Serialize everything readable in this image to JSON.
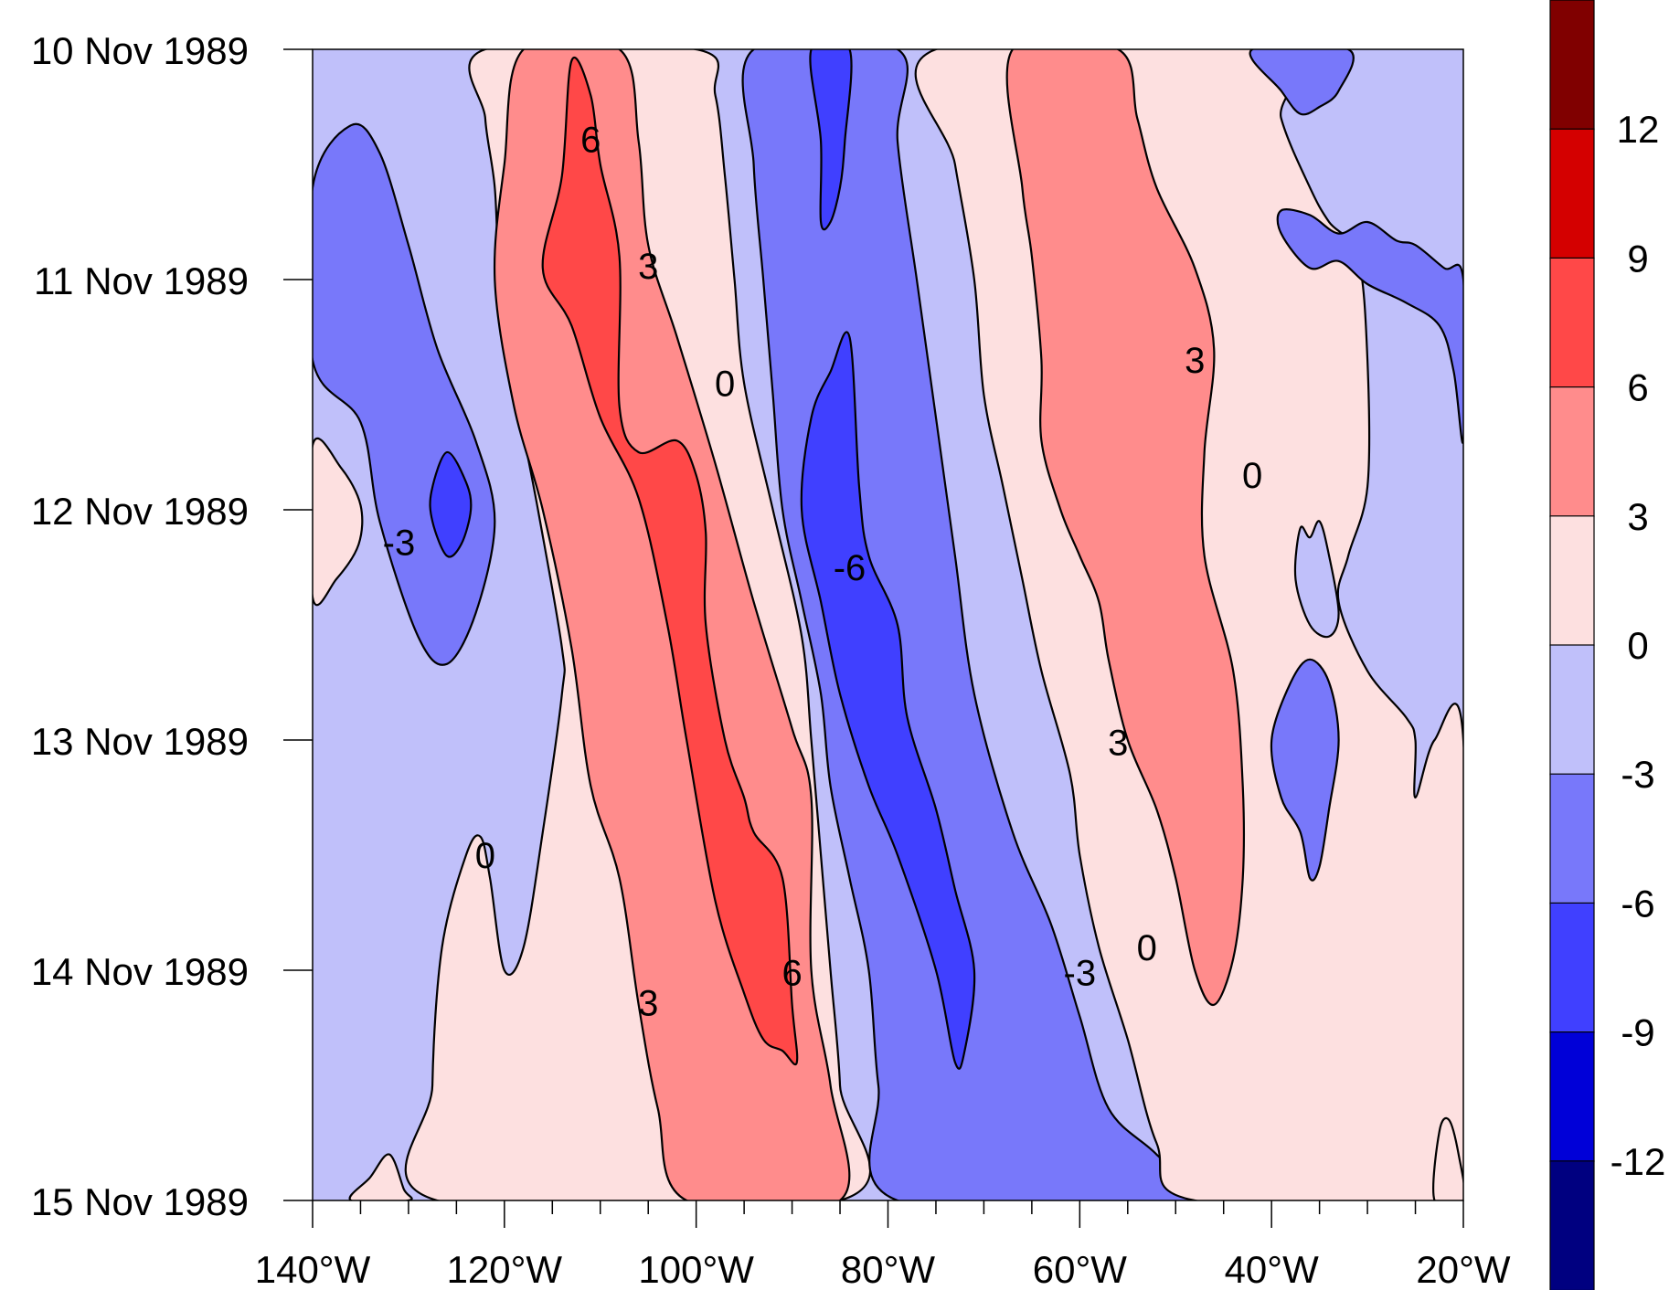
{
  "chart_data": {
    "type": "heatmap",
    "subtype": "filled-contour hovmoller",
    "title": "",
    "xlabel": "",
    "ylabel": "",
    "x_axis": {
      "range": [
        -140,
        -20
      ],
      "tick_values": [
        -140,
        -120,
        -100,
        -80,
        -60,
        -40,
        -20
      ],
      "tick_labels": [
        "140°W",
        "120°W",
        "100°W",
        "80°W",
        "60°W",
        "40°W",
        "20°W"
      ],
      "minor_tick_step": 5
    },
    "y_axis": {
      "range": [
        "10 Nov 1989",
        "15 Nov 1989"
      ],
      "direction": "time increases downward",
      "tick_labels": [
        "10 Nov 1989",
        "11 Nov 1989",
        "12 Nov 1989",
        "13 Nov 1989",
        "14 Nov 1989",
        "15 Nov 1989"
      ]
    },
    "contour_levels": [
      -12,
      -9,
      -6,
      -3,
      0,
      3,
      6,
      9,
      12
    ],
    "colorbar": {
      "placement": "right",
      "labels": [
        "12",
        "9",
        "6",
        "3",
        "0",
        "-3",
        "-6",
        "-9",
        "-12"
      ],
      "colors_top_to_bottom": [
        "#800000",
        "#d40000",
        "#ff4848",
        "#ff8c8c",
        "#fde0e0",
        "#c0c0fa",
        "#7878fa",
        "#4040ff",
        "#0000d8",
        "#000080"
      ]
    },
    "fill_colors": {
      "0_to_3": "#fde0e0",
      "3_to_6": "#ff8c8c",
      "6_to_9": "#ff4848",
      "m3_to_0": "#c0c0fa",
      "m6_to_m3": "#7878fa",
      "m9_to_m6": "#4040ff"
    },
    "contour_labels": [
      {
        "text": "6",
        "lon": -111,
        "day": 0.39
      },
      {
        "text": "3",
        "lon": -105,
        "day": 0.94
      },
      {
        "text": "0",
        "lon": -97,
        "day": 1.45
      },
      {
        "text": "-3",
        "lon": -131,
        "day": 2.14
      },
      {
        "text": "-6",
        "lon": -84,
        "day": 2.25
      },
      {
        "text": "3",
        "lon": -48,
        "day": 1.35
      },
      {
        "text": "0",
        "lon": -42,
        "day": 1.85
      },
      {
        "text": "3",
        "lon": -56,
        "day": 3.01
      },
      {
        "text": "0",
        "lon": -122,
        "day": 3.5
      },
      {
        "text": "3",
        "lon": -105,
        "day": 4.14
      },
      {
        "text": "6",
        "lon": -90,
        "day": 4.01
      },
      {
        "text": "-3",
        "lon": -60,
        "day": 4.01
      },
      {
        "text": "0",
        "lon": -53,
        "day": 3.9
      }
    ],
    "regions": [
      {
        "fill": "m6_to_m3",
        "points": [
          [
            -140,
            0.6
          ],
          [
            -136,
            0.33
          ],
          [
            -133,
            0.45
          ],
          [
            -130,
            0.85
          ],
          [
            -127,
            1.3
          ],
          [
            -123,
            1.7
          ],
          [
            -121,
            2.05
          ],
          [
            -123,
            2.45
          ],
          [
            -126,
            2.67
          ],
          [
            -129,
            2.55
          ],
          [
            -133,
            2.05
          ],
          [
            -135,
            1.62
          ],
          [
            -140,
            1.35
          ]
        ]
      },
      {
        "fill": "m9_to_m6",
        "points": [
          [
            -126,
            1.75
          ],
          [
            -124,
            1.88
          ],
          [
            -123.5,
            2.0
          ],
          [
            -124.5,
            2.15
          ],
          [
            -126,
            2.2
          ],
          [
            -127.5,
            2.05
          ],
          [
            -127.6,
            1.92
          ]
        ]
      },
      {
        "fill": "0_to_3",
        "points": [
          [
            -140,
            1.72
          ],
          [
            -137,
            1.82
          ],
          [
            -135,
            1.98
          ],
          [
            -135.2,
            2.15
          ],
          [
            -137.5,
            2.3
          ],
          [
            -140,
            2.38
          ]
        ]
      },
      {
        "fill": "0_to_3",
        "points": [
          [
            -127,
            5
          ],
          [
            -127.5,
            4.5
          ],
          [
            -126.5,
            3.9
          ],
          [
            -124,
            3.5
          ],
          [
            -122.5,
            3.42
          ],
          [
            -121.5,
            3.6
          ],
          [
            -120,
            4.0
          ],
          [
            -118,
            3.9
          ],
          [
            -116,
            3.4
          ],
          [
            -114,
            2.8
          ],
          [
            -114,
            2.6
          ],
          [
            -116.5,
            2.0
          ],
          [
            -119,
            1.45
          ],
          [
            -120.5,
            1.0
          ],
          [
            -121,
            0.6
          ],
          [
            -122,
            0.3
          ],
          [
            -122,
            0
          ],
          [
            -100,
            0
          ],
          [
            -98,
            0.2
          ],
          [
            -97,
            0.55
          ],
          [
            -96,
            1.0
          ],
          [
            -95,
            1.45
          ],
          [
            -92,
            2.0
          ],
          [
            -89,
            2.55
          ],
          [
            -88,
            3.0
          ],
          [
            -87,
            3.5
          ],
          [
            -86,
            4.0
          ],
          [
            -85,
            4.5
          ],
          [
            -85,
            5
          ]
        ]
      },
      {
        "fill": "3_to_6",
        "points": [
          [
            -118,
            0
          ],
          [
            -108,
            0
          ],
          [
            -106,
            0.4
          ],
          [
            -105,
            0.85
          ],
          [
            -102,
            1.25
          ],
          [
            -98,
            1.8
          ],
          [
            -94,
            2.4
          ],
          [
            -90,
            2.95
          ],
          [
            -88,
            3.25
          ],
          [
            -88,
            4.0
          ],
          [
            -86,
            4.5
          ],
          [
            -85,
            5
          ],
          [
            -101,
            5
          ],
          [
            -104,
            4.6
          ],
          [
            -106,
            4.15
          ],
          [
            -108,
            3.6
          ],
          [
            -111,
            3.2
          ],
          [
            -113,
            2.6
          ],
          [
            -116,
            2.0
          ],
          [
            -119,
            1.55
          ],
          [
            -121,
            1.0
          ],
          [
            -120,
            0.5
          ]
        ]
      },
      {
        "fill": "6_to_9",
        "points": [
          [
            -113,
            0.05
          ],
          [
            -111,
            0.2
          ],
          [
            -110,
            0.5
          ],
          [
            -108,
            0.9
          ],
          [
            -108,
            1.55
          ],
          [
            -106,
            1.75
          ],
          [
            -102,
            1.7
          ],
          [
            -100,
            1.85
          ],
          [
            -99,
            2.1
          ],
          [
            -99,
            2.5
          ],
          [
            -97,
            3.0
          ],
          [
            -95,
            3.25
          ],
          [
            -94,
            3.4
          ],
          [
            -91,
            3.6
          ],
          [
            -90,
            4.15
          ],
          [
            -89.5,
            4.4
          ],
          [
            -91,
            4.35
          ],
          [
            -93,
            4.3
          ],
          [
            -95,
            4.1
          ],
          [
            -98,
            3.7
          ],
          [
            -101,
            3.0
          ],
          [
            -103,
            2.5
          ],
          [
            -106,
            1.95
          ],
          [
            -110,
            1.6
          ],
          [
            -113,
            1.2
          ],
          [
            -116,
            0.95
          ],
          [
            -114,
            0.55
          ]
        ]
      },
      {
        "fill": "m6_to_m3",
        "points": [
          [
            -94,
            0
          ],
          [
            -79,
            0
          ],
          [
            -79,
            0.4
          ],
          [
            -77,
            1.0
          ],
          [
            -75,
            1.6
          ],
          [
            -73,
            2.2
          ],
          [
            -71,
            2.8
          ],
          [
            -67,
            3.4
          ],
          [
            -63,
            3.8
          ],
          [
            -60,
            4.2
          ],
          [
            -57,
            4.6
          ],
          [
            -52,
            4.8
          ],
          [
            -48,
            5
          ],
          [
            -79,
            5
          ],
          [
            -81,
            4.5
          ],
          [
            -82,
            4.0
          ],
          [
            -84,
            3.6
          ],
          [
            -86,
            3.2
          ],
          [
            -87,
            2.8
          ],
          [
            -89,
            2.4
          ],
          [
            -91,
            2.0
          ],
          [
            -92,
            1.5
          ],
          [
            -93,
            1.0
          ],
          [
            -94,
            0.5
          ]
        ]
      },
      {
        "fill": "m9_to_m6",
        "points": [
          [
            -88,
            0
          ],
          [
            -84,
            0
          ],
          [
            -84.5,
            0.4
          ],
          [
            -85,
            0.6
          ],
          [
            -86,
            0.75
          ],
          [
            -87,
            0.75
          ],
          [
            -87,
            0.4
          ]
        ]
      },
      {
        "fill": "m9_to_m6",
        "points": [
          [
            -89,
            2.0
          ],
          [
            -88,
            1.6
          ],
          [
            -86,
            1.4
          ],
          [
            -84,
            1.25
          ],
          [
            -83,
            1.9
          ],
          [
            -82,
            2.2
          ],
          [
            -79,
            2.5
          ],
          [
            -78,
            2.9
          ],
          [
            -75,
            3.3
          ],
          [
            -73,
            3.65
          ],
          [
            -71,
            4.0
          ],
          [
            -72,
            4.35
          ],
          [
            -73,
            4.4
          ],
          [
            -75,
            4.0
          ],
          [
            -79,
            3.5
          ],
          [
            -82,
            3.2
          ],
          [
            -85,
            2.8
          ],
          [
            -87,
            2.4
          ]
        ]
      },
      {
        "fill": "0_to_3",
        "points": [
          [
            -75,
            0
          ],
          [
            -40,
            0
          ],
          [
            -39,
            0.3
          ],
          [
            -36,
            0.6
          ],
          [
            -34,
            0.75
          ],
          [
            -31,
            0.9
          ],
          [
            -30,
            1.35
          ],
          [
            -30,
            1.9
          ],
          [
            -32,
            2.2
          ],
          [
            -33,
            2.4
          ],
          [
            -30,
            2.7
          ],
          [
            -26,
            2.9
          ],
          [
            -25,
            3.0
          ],
          [
            -25,
            3.25
          ],
          [
            -23,
            3.0
          ],
          [
            -20,
            3.0
          ],
          [
            -20,
            5
          ],
          [
            -48,
            5
          ],
          [
            -52,
            4.75
          ],
          [
            -55,
            4.3
          ],
          [
            -58,
            3.9
          ],
          [
            -60,
            3.5
          ],
          [
            -61,
            3.15
          ],
          [
            -64,
            2.7
          ],
          [
            -66,
            2.3
          ],
          [
            -68,
            1.9
          ],
          [
            -70,
            1.5
          ],
          [
            -71,
            1.0
          ],
          [
            -73,
            0.5
          ]
        ]
      },
      {
        "fill": "3_to_6",
        "points": [
          [
            -67,
            0
          ],
          [
            -56,
            0
          ],
          [
            -54,
            0.3
          ],
          [
            -52,
            0.6
          ],
          [
            -48,
            0.95
          ],
          [
            -46,
            1.3
          ],
          [
            -47,
            1.75
          ],
          [
            -47,
            2.2
          ],
          [
            -44,
            2.7
          ],
          [
            -43,
            3.2
          ],
          [
            -43,
            3.6
          ],
          [
            -44,
            3.95
          ],
          [
            -46,
            4.15
          ],
          [
            -48,
            4.0
          ],
          [
            -50,
            3.6
          ],
          [
            -52,
            3.3
          ],
          [
            -55,
            3.0
          ],
          [
            -57,
            2.65
          ],
          [
            -58,
            2.4
          ],
          [
            -60,
            2.2
          ],
          [
            -62,
            2.0
          ],
          [
            -64,
            1.7
          ],
          [
            -64,
            1.35
          ],
          [
            -65,
            0.9
          ],
          [
            -66,
            0.6
          ]
        ]
      },
      {
        "fill": "m3_to_0",
        "points": [
          [
            -37,
            2.08
          ],
          [
            -36,
            2.12
          ],
          [
            -35,
            2.05
          ],
          [
            -34,
            2.2
          ],
          [
            -33,
            2.45
          ],
          [
            -34,
            2.55
          ],
          [
            -36,
            2.5
          ],
          [
            -37.5,
            2.3
          ]
        ]
      },
      {
        "fill": "m6_to_m3",
        "points": [
          [
            -42,
            0
          ],
          [
            -32,
            0
          ],
          [
            -33,
            0.18
          ],
          [
            -35,
            0.25
          ],
          [
            -37,
            0.28
          ],
          [
            -39,
            0.18
          ]
        ]
      },
      {
        "fill": "m6_to_m3",
        "points": [
          [
            -39,
            0.8
          ],
          [
            -36,
            0.95
          ],
          [
            -33,
            0.92
          ],
          [
            -30,
            1.02
          ],
          [
            -26,
            1.1
          ],
          [
            -22.5,
            1.2
          ],
          [
            -21,
            1.4
          ],
          [
            -20,
            1.7
          ],
          [
            -20,
            1.0
          ],
          [
            -22,
            0.95
          ],
          [
            -25,
            0.85
          ],
          [
            -27,
            0.83
          ],
          [
            -30,
            0.75
          ],
          [
            -33,
            0.8
          ],
          [
            -36,
            0.72
          ],
          [
            -39,
            0.7
          ]
        ]
      },
      {
        "fill": "m6_to_m3",
        "points": [
          [
            -40,
            3.0
          ],
          [
            -38,
            2.75
          ],
          [
            -36,
            2.65
          ],
          [
            -34,
            2.75
          ],
          [
            -33,
            3.0
          ],
          [
            -34,
            3.3
          ],
          [
            -35,
            3.55
          ],
          [
            -36,
            3.6
          ],
          [
            -37,
            3.4
          ],
          [
            -39,
            3.25
          ]
        ]
      },
      {
        "fill": "0_to_3",
        "points": [
          [
            -136,
            5
          ],
          [
            -134,
            4.9
          ],
          [
            -132,
            4.8
          ],
          [
            -130.5,
            4.95
          ],
          [
            -130,
            5
          ]
        ]
      },
      {
        "fill": "0_to_3",
        "points": [
          [
            -23,
            5
          ],
          [
            -22.5,
            4.7
          ],
          [
            -21.5,
            4.65
          ],
          [
            -20.5,
            4.8
          ],
          [
            -20,
            5
          ]
        ]
      }
    ]
  }
}
